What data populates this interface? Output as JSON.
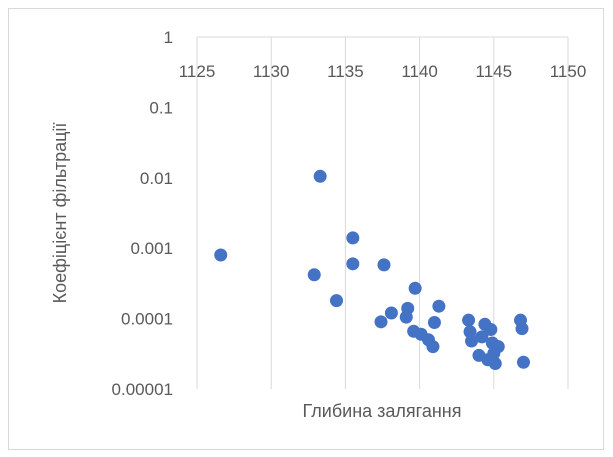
{
  "chart_data": {
    "type": "scatter",
    "title": "",
    "xlabel": "Глибина залягання",
    "ylabel": "Коефіцієнт фільтрації",
    "xlim": [
      1125,
      1150
    ],
    "ylim": [
      1e-05,
      1
    ],
    "y_scale": "log",
    "x_axis_position": "top",
    "grid": "vertical",
    "legend": "none",
    "x_ticks": [
      "1125",
      "1130",
      "1135",
      "1140",
      "1145",
      "1150"
    ],
    "y_ticks": [
      "1",
      "0.1",
      "0.01",
      "0.001",
      "0.0001",
      "0.00001"
    ],
    "marker_color": "#4472C4",
    "gridline_color": "#d9d9d9",
    "series": [
      {
        "points": [
          {
            "x": 1126.6,
            "y": 0.0008
          },
          {
            "x": 1132.9,
            "y": 0.00042
          },
          {
            "x": 1133.3,
            "y": 0.0105
          },
          {
            "x": 1134.4,
            "y": 0.00018
          },
          {
            "x": 1135.5,
            "y": 0.0014
          },
          {
            "x": 1135.5,
            "y": 0.0006
          },
          {
            "x": 1137.6,
            "y": 0.00058
          },
          {
            "x": 1137.4,
            "y": 9e-05
          },
          {
            "x": 1138.1,
            "y": 0.00012
          },
          {
            "x": 1139.2,
            "y": 0.00014
          },
          {
            "x": 1139.1,
            "y": 0.000105
          },
          {
            "x": 1139.7,
            "y": 0.00027
          },
          {
            "x": 1139.6,
            "y": 6.6e-05
          },
          {
            "x": 1140.1,
            "y": 6e-05
          },
          {
            "x": 1140.6,
            "y": 5e-05
          },
          {
            "x": 1140.9,
            "y": 4e-05
          },
          {
            "x": 1141.0,
            "y": 8.8e-05
          },
          {
            "x": 1141.3,
            "y": 0.00015
          },
          {
            "x": 1143.3,
            "y": 9.5e-05
          },
          {
            "x": 1143.4,
            "y": 6.5e-05
          },
          {
            "x": 1143.5,
            "y": 4.8e-05
          },
          {
            "x": 1144.0,
            "y": 3e-05
          },
          {
            "x": 1144.2,
            "y": 5.5e-05
          },
          {
            "x": 1144.4,
            "y": 8.3e-05
          },
          {
            "x": 1144.6,
            "y": 2.6e-05
          },
          {
            "x": 1144.8,
            "y": 7e-05
          },
          {
            "x": 1144.9,
            "y": 4.5e-05
          },
          {
            "x": 1145.0,
            "y": 3.2e-05
          },
          {
            "x": 1145.1,
            "y": 2.3e-05
          },
          {
            "x": 1145.3,
            "y": 4e-05
          },
          {
            "x": 1146.8,
            "y": 9.5e-05
          },
          {
            "x": 1146.9,
            "y": 7.2e-05
          },
          {
            "x": 1147.0,
            "y": 2.4e-05
          }
        ]
      }
    ]
  }
}
